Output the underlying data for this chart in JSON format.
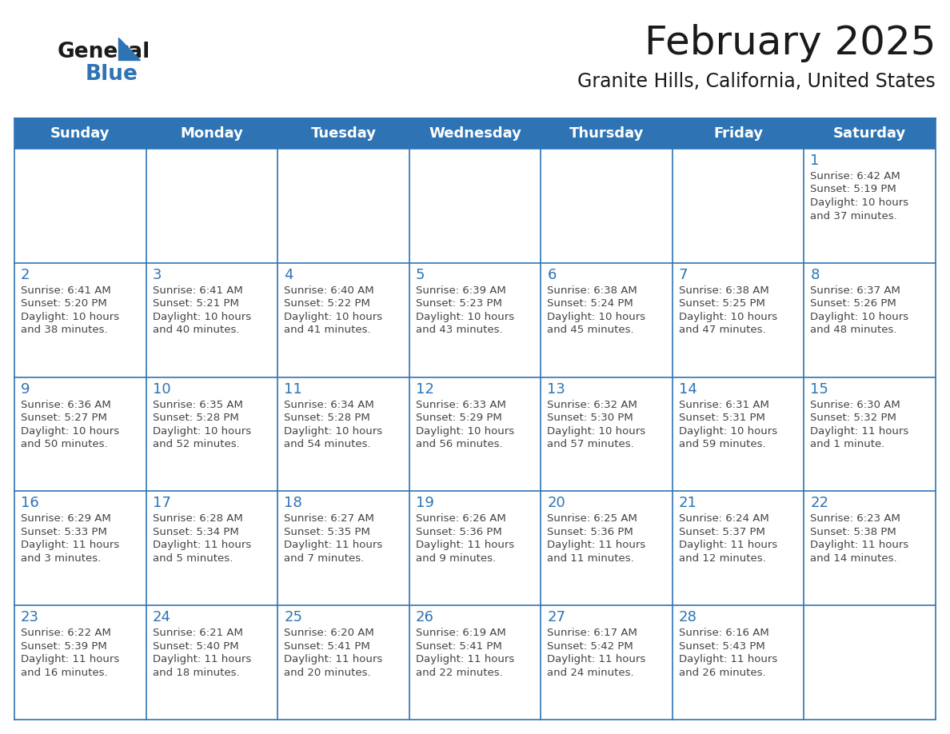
{
  "title": "February 2025",
  "subtitle": "Granite Hills, California, United States",
  "header_color": "#2E74B5",
  "header_text_color": "#FFFFFF",
  "grid_line_color": "#2E74B5",
  "day_names": [
    "Sunday",
    "Monday",
    "Tuesday",
    "Wednesday",
    "Thursday",
    "Friday",
    "Saturday"
  ],
  "days": [
    {
      "day": 1,
      "col": 6,
      "row": 0,
      "sunrise": "6:42 AM",
      "sunset": "5:19 PM",
      "daylight": "10 hours\nand 37 minutes."
    },
    {
      "day": 2,
      "col": 0,
      "row": 1,
      "sunrise": "6:41 AM",
      "sunset": "5:20 PM",
      "daylight": "10 hours\nand 38 minutes."
    },
    {
      "day": 3,
      "col": 1,
      "row": 1,
      "sunrise": "6:41 AM",
      "sunset": "5:21 PM",
      "daylight": "10 hours\nand 40 minutes."
    },
    {
      "day": 4,
      "col": 2,
      "row": 1,
      "sunrise": "6:40 AM",
      "sunset": "5:22 PM",
      "daylight": "10 hours\nand 41 minutes."
    },
    {
      "day": 5,
      "col": 3,
      "row": 1,
      "sunrise": "6:39 AM",
      "sunset": "5:23 PM",
      "daylight": "10 hours\nand 43 minutes."
    },
    {
      "day": 6,
      "col": 4,
      "row": 1,
      "sunrise": "6:38 AM",
      "sunset": "5:24 PM",
      "daylight": "10 hours\nand 45 minutes."
    },
    {
      "day": 7,
      "col": 5,
      "row": 1,
      "sunrise": "6:38 AM",
      "sunset": "5:25 PM",
      "daylight": "10 hours\nand 47 minutes."
    },
    {
      "day": 8,
      "col": 6,
      "row": 1,
      "sunrise": "6:37 AM",
      "sunset": "5:26 PM",
      "daylight": "10 hours\nand 48 minutes."
    },
    {
      "day": 9,
      "col": 0,
      "row": 2,
      "sunrise": "6:36 AM",
      "sunset": "5:27 PM",
      "daylight": "10 hours\nand 50 minutes."
    },
    {
      "day": 10,
      "col": 1,
      "row": 2,
      "sunrise": "6:35 AM",
      "sunset": "5:28 PM",
      "daylight": "10 hours\nand 52 minutes."
    },
    {
      "day": 11,
      "col": 2,
      "row": 2,
      "sunrise": "6:34 AM",
      "sunset": "5:28 PM",
      "daylight": "10 hours\nand 54 minutes."
    },
    {
      "day": 12,
      "col": 3,
      "row": 2,
      "sunrise": "6:33 AM",
      "sunset": "5:29 PM",
      "daylight": "10 hours\nand 56 minutes."
    },
    {
      "day": 13,
      "col": 4,
      "row": 2,
      "sunrise": "6:32 AM",
      "sunset": "5:30 PM",
      "daylight": "10 hours\nand 57 minutes."
    },
    {
      "day": 14,
      "col": 5,
      "row": 2,
      "sunrise": "6:31 AM",
      "sunset": "5:31 PM",
      "daylight": "10 hours\nand 59 minutes."
    },
    {
      "day": 15,
      "col": 6,
      "row": 2,
      "sunrise": "6:30 AM",
      "sunset": "5:32 PM",
      "daylight": "11 hours\nand 1 minute."
    },
    {
      "day": 16,
      "col": 0,
      "row": 3,
      "sunrise": "6:29 AM",
      "sunset": "5:33 PM",
      "daylight": "11 hours\nand 3 minutes."
    },
    {
      "day": 17,
      "col": 1,
      "row": 3,
      "sunrise": "6:28 AM",
      "sunset": "5:34 PM",
      "daylight": "11 hours\nand 5 minutes."
    },
    {
      "day": 18,
      "col": 2,
      "row": 3,
      "sunrise": "6:27 AM",
      "sunset": "5:35 PM",
      "daylight": "11 hours\nand 7 minutes."
    },
    {
      "day": 19,
      "col": 3,
      "row": 3,
      "sunrise": "6:26 AM",
      "sunset": "5:36 PM",
      "daylight": "11 hours\nand 9 minutes."
    },
    {
      "day": 20,
      "col": 4,
      "row": 3,
      "sunrise": "6:25 AM",
      "sunset": "5:36 PM",
      "daylight": "11 hours\nand 11 minutes."
    },
    {
      "day": 21,
      "col": 5,
      "row": 3,
      "sunrise": "6:24 AM",
      "sunset": "5:37 PM",
      "daylight": "11 hours\nand 12 minutes."
    },
    {
      "day": 22,
      "col": 6,
      "row": 3,
      "sunrise": "6:23 AM",
      "sunset": "5:38 PM",
      "daylight": "11 hours\nand 14 minutes."
    },
    {
      "day": 23,
      "col": 0,
      "row": 4,
      "sunrise": "6:22 AM",
      "sunset": "5:39 PM",
      "daylight": "11 hours\nand 16 minutes."
    },
    {
      "day": 24,
      "col": 1,
      "row": 4,
      "sunrise": "6:21 AM",
      "sunset": "5:40 PM",
      "daylight": "11 hours\nand 18 minutes."
    },
    {
      "day": 25,
      "col": 2,
      "row": 4,
      "sunrise": "6:20 AM",
      "sunset": "5:41 PM",
      "daylight": "11 hours\nand 20 minutes."
    },
    {
      "day": 26,
      "col": 3,
      "row": 4,
      "sunrise": "6:19 AM",
      "sunset": "5:41 PM",
      "daylight": "11 hours\nand 22 minutes."
    },
    {
      "day": 27,
      "col": 4,
      "row": 4,
      "sunrise": "6:17 AM",
      "sunset": "5:42 PM",
      "daylight": "11 hours\nand 24 minutes."
    },
    {
      "day": 28,
      "col": 5,
      "row": 4,
      "sunrise": "6:16 AM",
      "sunset": "5:43 PM",
      "daylight": "11 hours\nand 26 minutes."
    }
  ],
  "num_rows": 5,
  "num_cols": 7,
  "bg_color": "#FFFFFF",
  "day_number_color": "#2E74B5",
  "text_color": "#444444",
  "logo_general_color": "#1a1a1a",
  "logo_blue_color": "#2E74B5",
  "figsize": [
    11.88,
    9.18
  ],
  "dpi": 100
}
